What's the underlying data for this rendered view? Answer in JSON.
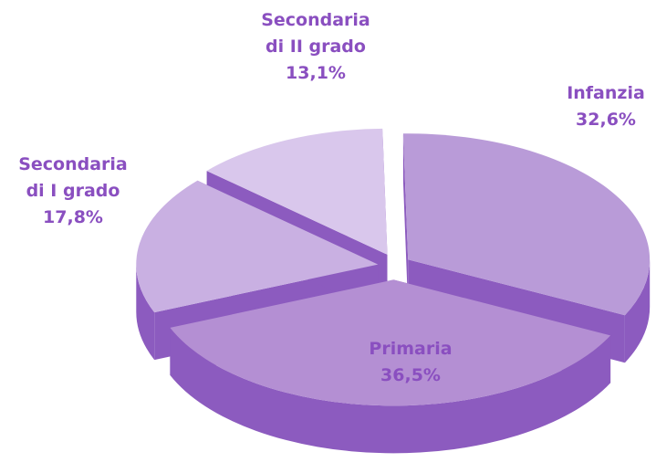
{
  "chart_data": {
    "type": "pie",
    "categories": [
      "Infanzia",
      "Primaria",
      "Secondaria di I grado",
      "Secondaria di II grado"
    ],
    "values": [
      32.6,
      36.5,
      17.8,
      13.1
    ],
    "value_labels": [
      "32,6%",
      "36,5%",
      "17,8%",
      "13,1%"
    ],
    "colors": [
      "#b99bd8",
      "#b48fd3",
      "#c9b0e2",
      "#d9c7ec"
    ],
    "side_color": "#8c5bbf",
    "label_color": "#8a4fc0"
  }
}
